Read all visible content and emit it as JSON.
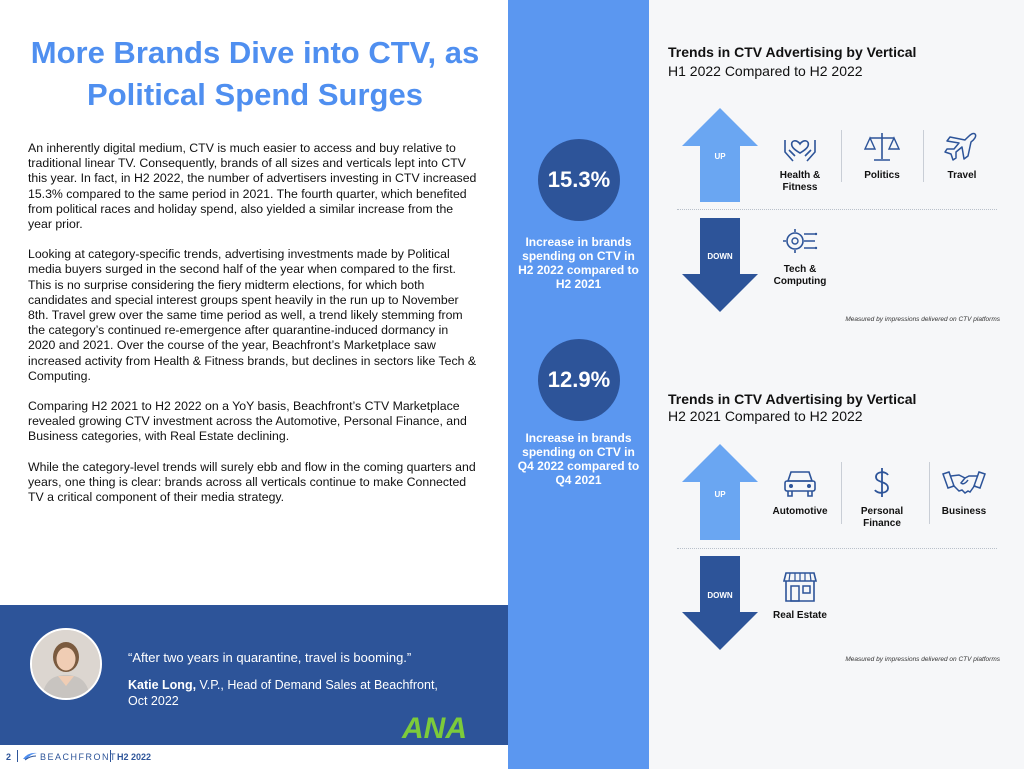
{
  "article": {
    "title": "More Brands Dive into CTV, as Political Spend Surges",
    "paragraphs": [
      "An inherently digital medium, CTV is much easier to access and buy relative to traditional linear TV. Consequently, brands of all sizes and verticals lept into CTV this year. In fact, in H2 2022, the number of advertisers investing in CTV increased 15.3% compared to the same period in 2021. The fourth quarter, which benefited from political races and holiday spend, also yielded a similar increase from the year prior.",
      "Looking at category-specific trends, advertising investments made by Political media buyers surged in the second half of the year when compared to the first. This is no surprise considering the fiery midterm elections, for which both candidates and special interest groups spent heavily in the run up to November 8th. Travel grew over the same time period as well, a trend likely stemming from the category’s continued re-emergence after quarantine-induced dormancy in 2020 and 2021. Over the course of the year, Beachfront’s Marketplace saw increased activity from Health & Fitness brands, but declines in sectors like Tech & Computing.",
      "Comparing H2 2021 to H2 2022 on a YoY basis, Beachfront’s CTV Marketplace revealed growing CTV investment across the Automotive, Personal Finance, and Business categories, with Real Estate declining.",
      "While the category-level trends will surely ebb and flow in the coming quarters and years, one thing is clear: brands across all verticals continue to make Connected TV a critical component of their media strategy."
    ]
  },
  "quote": {
    "text": "“After two years in quarantine, travel is booming.”",
    "name": "Katie Long,",
    "role": "V.P., Head of Demand Sales at Beachfront,",
    "date": "Oct 2022"
  },
  "footer": {
    "page": "2",
    "brand": "BEACHFRONT",
    "period": "H2 2022",
    "logo_text": "ANA"
  },
  "stats": [
    {
      "value": "15.3%",
      "text": "Increase in brands spending on CTV in H2 2022 compared to H2 2021"
    },
    {
      "value": "12.9%",
      "text": "Increase in brands spending on CTV in Q4 2022 compared to Q4 2021"
    }
  ],
  "trends": [
    {
      "title": "Trends in CTV Advertising by Vertical",
      "subtitle": "H1 2022 Compared to H2 2022",
      "up_label": "UP",
      "down_label": "DOWN",
      "up": [
        {
          "label": "Health & Fitness",
          "icon": "hands-heart-icon"
        },
        {
          "label": "Politics",
          "icon": "scales-icon"
        },
        {
          "label": "Travel",
          "icon": "airplane-icon"
        }
      ],
      "down": [
        {
          "label": "Tech & Computing",
          "icon": "chip-gear-icon"
        }
      ],
      "note": "Measured by impressions delivered on CTV platforms"
    },
    {
      "title": "Trends in CTV Advertising by Vertical",
      "subtitle": "H2 2021 Compared to H2 2022",
      "up_label": "UP",
      "down_label": "DOWN",
      "up": [
        {
          "label": "Automotive",
          "icon": "car-icon"
        },
        {
          "label": "Personal Finance",
          "icon": "dollar-icon"
        },
        {
          "label": "Business",
          "icon": "handshake-icon"
        }
      ],
      "down": [
        {
          "label": "Real Estate",
          "icon": "storefront-icon"
        }
      ],
      "note": "Measured by impressions delivered on CTV platforms"
    }
  ],
  "colors": {
    "accent_blue": "#4f8ff0",
    "dark_blue": "#2d5499",
    "mid_blue": "#5b97f0",
    "light_blue": "#6aa6f2",
    "ana_green": "#7ccb3b"
  }
}
